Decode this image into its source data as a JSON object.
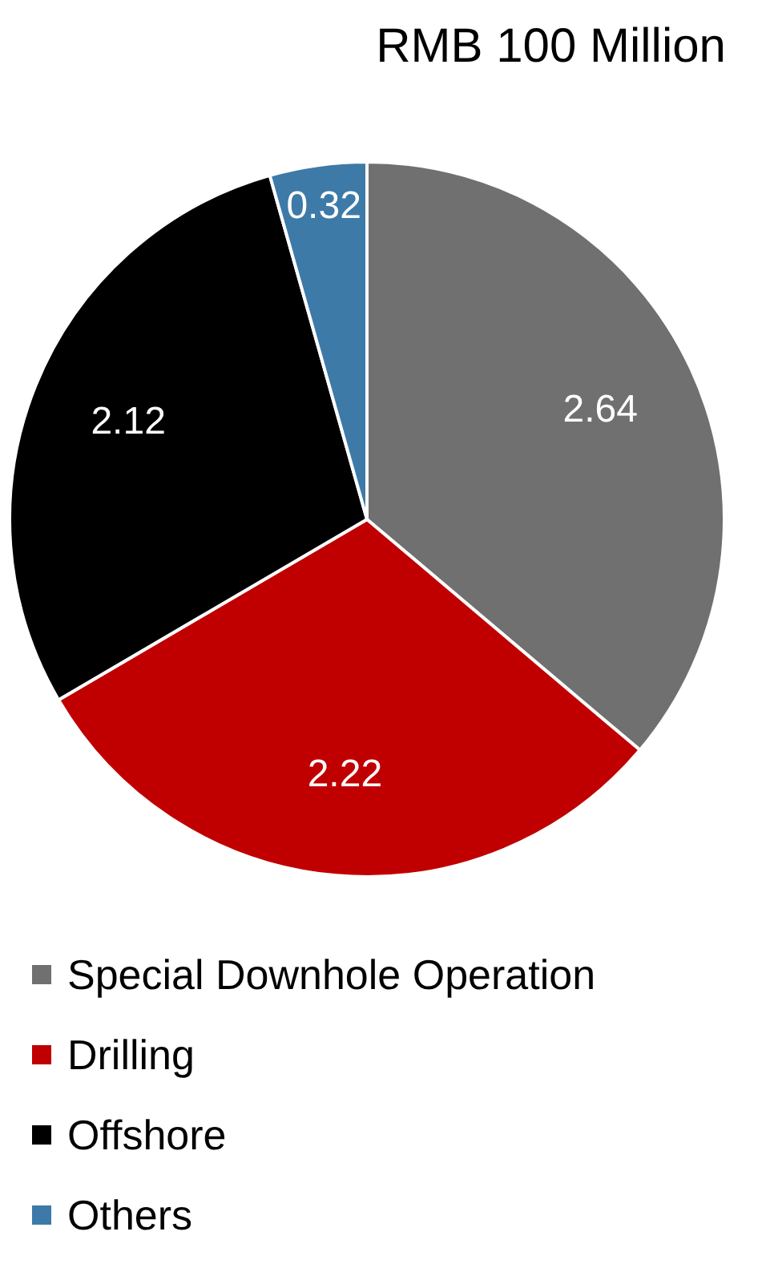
{
  "chart_data": {
    "type": "pie",
    "title": "RMB 100 Million",
    "categories": [
      "Special Downhole Operation",
      "Drilling",
      "Offshore",
      "Others"
    ],
    "values": [
      2.64,
      2.22,
      2.12,
      0.32
    ],
    "colors": [
      "#707070",
      "#c00000",
      "#000000",
      "#3d7aa8"
    ],
    "data_labels": true,
    "legend": "bottom"
  }
}
